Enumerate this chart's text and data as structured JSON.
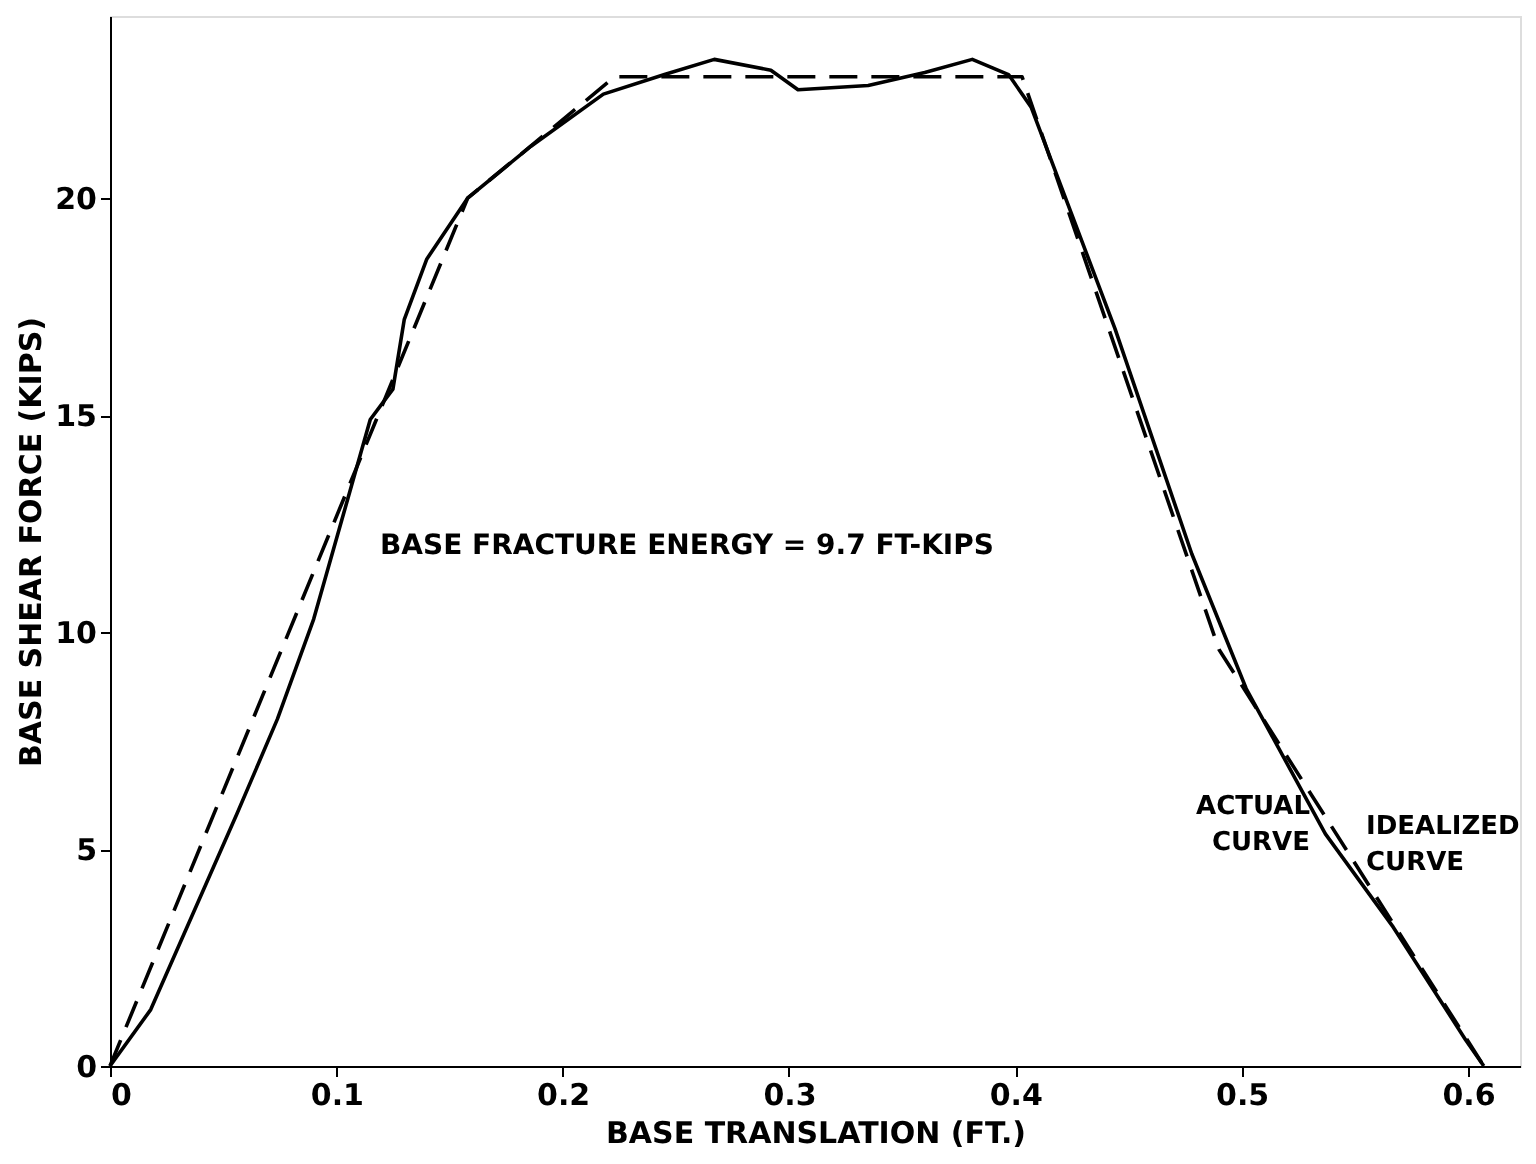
{
  "chart_data": {
    "type": "line",
    "xlabel": "BASE TRANSLATION (FT.)",
    "ylabel": "BASE SHEAR FORCE (KIPS)",
    "xlim": [
      0,
      0.623
    ],
    "ylim": [
      0,
      24.2
    ],
    "xticks": [
      0,
      0.1,
      0.2,
      0.3,
      0.4,
      0.5,
      0.6
    ],
    "yticks": [
      0,
      5,
      10,
      15,
      20
    ],
    "grid": false,
    "legend": false,
    "marker": "none",
    "annotations": [
      "BASE FRACTURE ENERGY = 9.7 FT-KIPS"
    ],
    "series": [
      {
        "name": "ACTUAL CURVE",
        "color": "#000000",
        "line_style": "solid",
        "x": [
          0,
          0.018,
          0.056,
          0.074,
          0.09,
          0.115,
          0.125,
          0.13,
          0.14,
          0.158,
          0.186,
          0.218,
          0.245,
          0.267,
          0.292,
          0.304,
          0.335,
          0.36,
          0.381,
          0.397,
          0.407,
          0.444,
          0.478,
          0.502,
          0.537,
          0.567,
          0.599,
          0.607
        ],
        "values": [
          0,
          1.3,
          5.8,
          8.0,
          10.3,
          14.9,
          15.6,
          17.2,
          18.6,
          20.0,
          21.2,
          22.4,
          22.85,
          23.2,
          22.95,
          22.5,
          22.6,
          22.9,
          23.2,
          22.85,
          22.1,
          17.0,
          11.8,
          8.7,
          5.35,
          3.2,
          0.6,
          0
        ]
      },
      {
        "name": "IDEALIZED CURVE",
        "color": "#000000",
        "line_style": "dashed",
        "x": [
          0,
          0.158,
          0.223,
          0.403,
          0.49,
          0.607
        ],
        "values": [
          0,
          20.0,
          22.8,
          22.8,
          9.6,
          0
        ]
      }
    ]
  }
}
